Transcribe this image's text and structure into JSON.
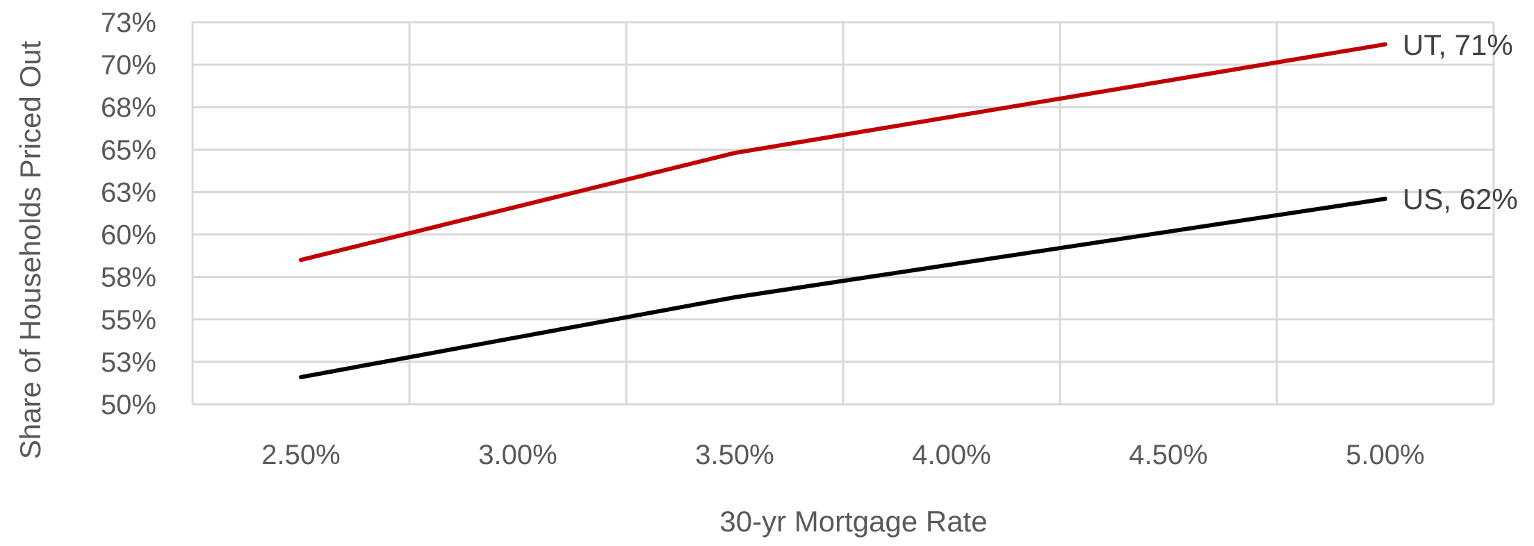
{
  "chart_data": {
    "type": "line",
    "xlabel": "30-yr Mortgage Rate",
    "ylabel": "Share of Households Priced Out",
    "categories": [
      "2.50%",
      "3.00%",
      "3.50%",
      "4.00%",
      "4.50%",
      "5.00%"
    ],
    "x": [
      2.5,
      3.0,
      3.5,
      4.0,
      4.5,
      5.0
    ],
    "y_ticks": [
      "50%",
      "53%",
      "55%",
      "58%",
      "60%",
      "63%",
      "65%",
      "68%",
      "70%",
      "73%"
    ],
    "y_tick_values": [
      50,
      52.5,
      55,
      57.5,
      60,
      62.5,
      65,
      67.5,
      70,
      72.5
    ],
    "ylim": [
      50,
      72.5
    ],
    "grid": true,
    "legend": "none",
    "series": [
      {
        "name": "UT",
        "end_label": "UT, 71%",
        "color": "#c00000",
        "points": [
          [
            2.5,
            58.5
          ],
          [
            3.5,
            64.8
          ],
          [
            5.0,
            71.2
          ]
        ]
      },
      {
        "name": "US",
        "end_label": "US, 62%",
        "color": "#000000",
        "points": [
          [
            2.5,
            51.6
          ],
          [
            3.5,
            56.3
          ],
          [
            5.0,
            62.1
          ]
        ]
      }
    ]
  }
}
